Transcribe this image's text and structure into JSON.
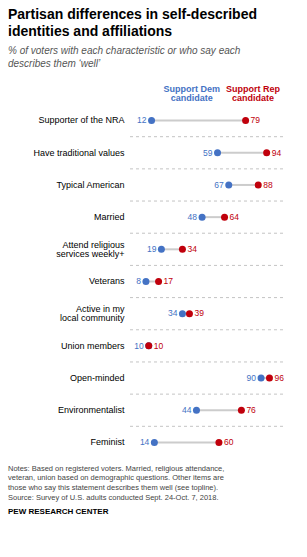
{
  "chart_data": {
    "type": "dumbbell",
    "title": "Partisan differences in self-described\nidentities and affiliations",
    "subtitle": "% of voters with each characteristic or who say each\ndescribes them ‘well’",
    "categories": [
      "Supporter of the NRA",
      "Have traditional values",
      "Typical American",
      "Married",
      "Attend religious\nservices weekly+",
      "Veterans",
      "Active in my\nlocal community",
      "Union members",
      "Open-minded",
      "Environmentalist",
      "Feminist"
    ],
    "series": [
      {
        "name": "Support Dem\ncandidate",
        "color": "#4472C4",
        "values": [
          12,
          59,
          67,
          48,
          19,
          8,
          34,
          10,
          90,
          44,
          14
        ]
      },
      {
        "name": "Support Rep\ncandidate",
        "color": "#C0000C",
        "values": [
          79,
          94,
          88,
          64,
          34,
          17,
          39,
          10,
          96,
          76,
          60
        ]
      }
    ],
    "xlim": [
      -3,
      106
    ],
    "xticks": [],
    "grid": false,
    "data_labels": true,
    "tick_labels": "y",
    "notes": "Notes: Based on registered voters. Married, religious attendance,\nveteran, union based on demographic questions. Other items are\nthose who say this statement describes them well (see topline).\nSource: Survey of U.S. adults conducted Sept. 24-Oct. 7, 2018.",
    "source": "PEW RESEARCH CENTER"
  }
}
